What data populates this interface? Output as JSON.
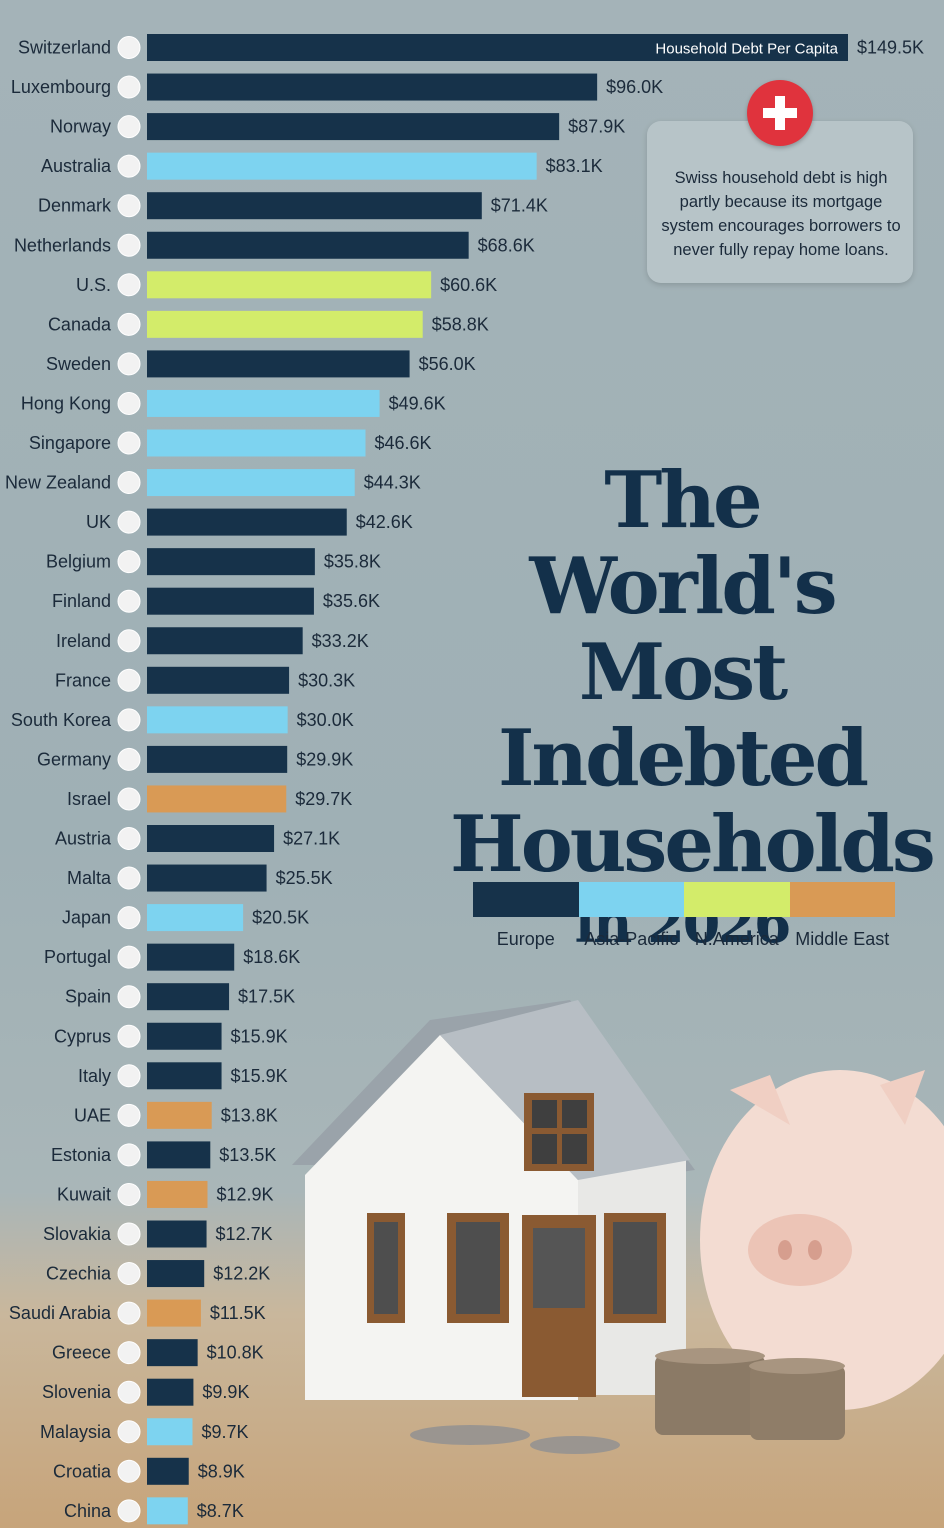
{
  "title": {
    "line1": "The World's",
    "line2": "Most Indebted",
    "line3": "Households",
    "line4": "in 2026"
  },
  "note": {
    "text": "Swiss household debt is high partly because its mortgage system encourages borrowers to never fully repay home loans."
  },
  "legend": [
    {
      "name": "Europe",
      "color": "#16324a"
    },
    {
      "name": "Asia-Pacific",
      "color": "#7dd3f0"
    },
    {
      "name": "N.America",
      "color": "#d3ec6a"
    },
    {
      "name": "Middle East",
      "color": "#d99a55"
    }
  ],
  "chart_data": {
    "type": "bar",
    "orientation": "horizontal",
    "series_label": "Household Debt Per Capita",
    "unit": "USD thousands",
    "xlim": [
      0,
      149.5
    ],
    "grid": false,
    "bars": [
      {
        "country": "Switzerland",
        "value": 149.5,
        "label": "$149.5K",
        "region": "Europe"
      },
      {
        "country": "Luxembourg",
        "value": 96.0,
        "label": "$96.0K",
        "region": "Europe"
      },
      {
        "country": "Norway",
        "value": 87.9,
        "label": "$87.9K",
        "region": "Europe"
      },
      {
        "country": "Australia",
        "value": 83.1,
        "label": "$83.1K",
        "region": "Asia-Pacific"
      },
      {
        "country": "Denmark",
        "value": 71.4,
        "label": "$71.4K",
        "region": "Europe"
      },
      {
        "country": "Netherlands",
        "value": 68.6,
        "label": "$68.6K",
        "region": "Europe"
      },
      {
        "country": "U.S.",
        "value": 60.6,
        "label": "$60.6K",
        "region": "N.America"
      },
      {
        "country": "Canada",
        "value": 58.8,
        "label": "$58.8K",
        "region": "N.America"
      },
      {
        "country": "Sweden",
        "value": 56.0,
        "label": "$56.0K",
        "region": "Europe"
      },
      {
        "country": "Hong Kong",
        "value": 49.6,
        "label": "$49.6K",
        "region": "Asia-Pacific"
      },
      {
        "country": "Singapore",
        "value": 46.6,
        "label": "$46.6K",
        "region": "Asia-Pacific"
      },
      {
        "country": "New Zealand",
        "value": 44.3,
        "label": "$44.3K",
        "region": "Asia-Pacific"
      },
      {
        "country": "UK",
        "value": 42.6,
        "label": "$42.6K",
        "region": "Europe"
      },
      {
        "country": "Belgium",
        "value": 35.8,
        "label": "$35.8K",
        "region": "Europe"
      },
      {
        "country": "Finland",
        "value": 35.6,
        "label": "$35.6K",
        "region": "Europe"
      },
      {
        "country": "Ireland",
        "value": 33.2,
        "label": "$33.2K",
        "region": "Europe"
      },
      {
        "country": "France",
        "value": 30.3,
        "label": "$30.3K",
        "region": "Europe"
      },
      {
        "country": "South Korea",
        "value": 30.0,
        "label": "$30.0K",
        "region": "Asia-Pacific"
      },
      {
        "country": "Germany",
        "value": 29.9,
        "label": "$29.9K",
        "region": "Europe"
      },
      {
        "country": "Israel",
        "value": 29.7,
        "label": "$29.7K",
        "region": "Middle East"
      },
      {
        "country": "Austria",
        "value": 27.1,
        "label": "$27.1K",
        "region": "Europe"
      },
      {
        "country": "Malta",
        "value": 25.5,
        "label": "$25.5K",
        "region": "Europe"
      },
      {
        "country": "Japan",
        "value": 20.5,
        "label": "$20.5K",
        "region": "Asia-Pacific"
      },
      {
        "country": "Portugal",
        "value": 18.6,
        "label": "$18.6K",
        "region": "Europe"
      },
      {
        "country": "Spain",
        "value": 17.5,
        "label": "$17.5K",
        "region": "Europe"
      },
      {
        "country": "Cyprus",
        "value": 15.9,
        "label": "$15.9K",
        "region": "Europe"
      },
      {
        "country": "Italy",
        "value": 15.9,
        "label": "$15.9K",
        "region": "Europe"
      },
      {
        "country": "UAE",
        "value": 13.8,
        "label": "$13.8K",
        "region": "Middle East"
      },
      {
        "country": "Estonia",
        "value": 13.5,
        "label": "$13.5K",
        "region": "Europe"
      },
      {
        "country": "Kuwait",
        "value": 12.9,
        "label": "$12.9K",
        "region": "Middle East"
      },
      {
        "country": "Slovakia",
        "value": 12.7,
        "label": "$12.7K",
        "region": "Europe"
      },
      {
        "country": "Czechia",
        "value": 12.2,
        "label": "$12.2K",
        "region": "Europe"
      },
      {
        "country": "Saudi Arabia",
        "value": 11.5,
        "label": "$11.5K",
        "region": "Middle East"
      },
      {
        "country": "Greece",
        "value": 10.8,
        "label": "$10.8K",
        "region": "Europe"
      },
      {
        "country": "Slovenia",
        "value": 9.9,
        "label": "$9.9K",
        "region": "Europe"
      },
      {
        "country": "Malaysia",
        "value": 9.7,
        "label": "$9.7K",
        "region": "Asia-Pacific"
      },
      {
        "country": "Croatia",
        "value": 8.9,
        "label": "$8.9K",
        "region": "Europe"
      },
      {
        "country": "China",
        "value": 8.7,
        "label": "$8.7K",
        "region": "Asia-Pacific"
      }
    ]
  }
}
